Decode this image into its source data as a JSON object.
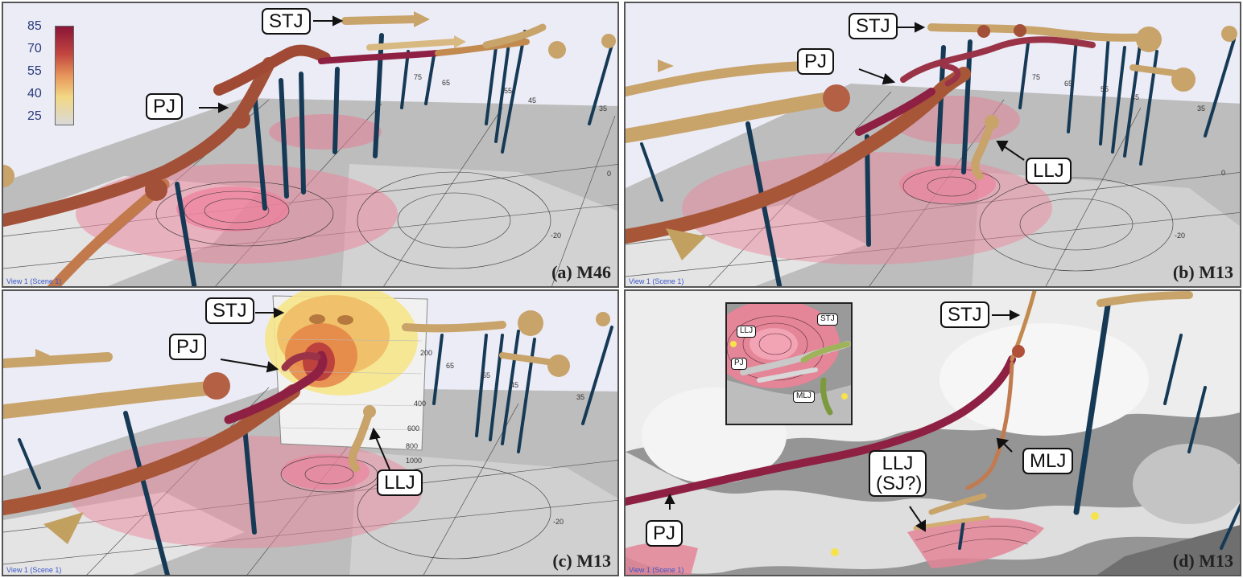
{
  "colorbar": {
    "labels": [
      "85",
      "70",
      "55",
      "40",
      "25"
    ],
    "colors": [
      "#8a1538",
      "#c2453f",
      "#e7955a",
      "#f2d884",
      "#d9d9d9"
    ]
  },
  "panels": [
    {
      "caption": "(a) M46",
      "view": "View 1 (Scene 1)",
      "labels": [
        "STJ",
        "PJ"
      ],
      "ticks": [
        "75",
        "65",
        "55",
        "45",
        "35",
        "0",
        "-20"
      ]
    },
    {
      "caption": "(b) M13",
      "view": "View 1 (Scene 1)",
      "labels": [
        "STJ",
        "PJ",
        "LLJ"
      ],
      "ticks": [
        "75",
        "65",
        "55",
        "45",
        "35",
        "0",
        "-20"
      ]
    },
    {
      "caption": "(c) M13",
      "view": "View 1 (Scene 1)",
      "labels": [
        "STJ",
        "PJ",
        "LLJ"
      ],
      "ticks": [
        "65",
        "55",
        "45",
        "35",
        "-20"
      ],
      "pressure_ticks": [
        "200",
        "400",
        "600",
        "800",
        "1000"
      ]
    },
    {
      "caption": "(d) M13",
      "view": "View 1 (Scene 1)",
      "labels": [
        "STJ",
        "PJ",
        "MLJ",
        "LLJ",
        "(SJ?)"
      ],
      "inset_labels": [
        "STJ",
        "LLJ",
        "PJ",
        "MLJ"
      ]
    }
  ]
}
